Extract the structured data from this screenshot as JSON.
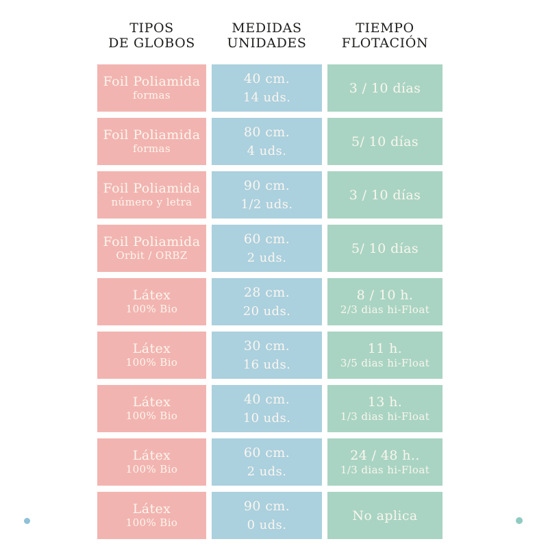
{
  "headers": {
    "col1_line1": "TIPOS",
    "col1_line2": "DE GLOBOS",
    "col2_line1": "MEDIDAS",
    "col2_line2": "UNIDADES",
    "col3_line1": "TIEMPO",
    "col3_line2": "FLOTACIÓN"
  },
  "rows": [
    {
      "type": "Foil Poliamida",
      "type_sub": "formas",
      "size": "40 cm.",
      "units": "14 uds.",
      "float": "3 / 10 días",
      "float_sub": ""
    },
    {
      "type": "Foil Poliamida",
      "type_sub": "formas",
      "size": "80 cm.",
      "units": "4 uds.",
      "float": "5/ 10 días",
      "float_sub": ""
    },
    {
      "type": "Foil Poliamida",
      "type_sub": "número y letra",
      "size": "90 cm.",
      "units": "1/2 uds.",
      "float": "3 / 10 días",
      "float_sub": ""
    },
    {
      "type": "Foil Poliamida",
      "type_sub": "Orbit / ORBZ",
      "size": "60 cm.",
      "units": "2 uds.",
      "float": "5/ 10 días",
      "float_sub": ""
    },
    {
      "type": "Látex",
      "type_sub": "100% Bio",
      "size": "28 cm.",
      "units": "20 uds.",
      "float": "8 / 10 h.",
      "float_sub": "2/3 dias hi-Float"
    },
    {
      "type": "Látex",
      "type_sub": "100% Bio",
      "size": "30 cm.",
      "units": "16 uds.",
      "float": "11 h.",
      "float_sub": "3/5 dias hi-Float"
    },
    {
      "type": "Látex",
      "type_sub": "100% Bio",
      "size": "40 cm.",
      "units": "10 uds.",
      "float": "13 h.",
      "float_sub": "1/3 dias hi-Float"
    },
    {
      "type": "Látex",
      "type_sub": "100% Bio",
      "size": "60 cm.",
      "units": "2 uds.",
      "float": "24 / 48 h..",
      "float_sub": "1/3 dias hi-Float"
    },
    {
      "type": "Látex",
      "type_sub": "100% Bio",
      "size": "90 cm.",
      "units": "0 uds.",
      "float": "No aplica",
      "float_sub": ""
    }
  ],
  "colors": {
    "pink": "#f2b4b0",
    "blue": "#abd0de",
    "green": "#a9d4c3",
    "cell_text": "#fbf6ef",
    "header_text": "#1d1d1b",
    "dot_blue": "#8fc2d8",
    "dot_teal": "#90cbc2"
  }
}
